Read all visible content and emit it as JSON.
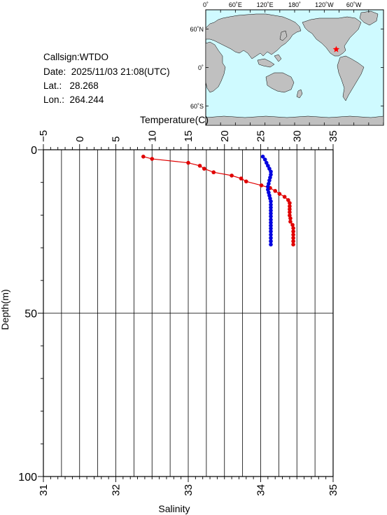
{
  "info": {
    "callsign": "Callsign:WTDO",
    "date": "Date:  2025/11/03 21:08(UTC)",
    "lat": "Lat.:   28.268",
    "lon": "Lon.:  264.244"
  },
  "map": {
    "top_ticks": [
      "0˚",
      "60˚E",
      "120˚E",
      "180˚",
      "120˚W",
      "60˚W"
    ],
    "lat_ticks": [
      "60˚N",
      "0˚",
      "60˚S"
    ],
    "ocean_color": "#cffaff",
    "land_color": "#c0c0c0",
    "marker_color": "#ff0000",
    "marker_lon": 264.244,
    "marker_lat": 28.268
  },
  "chart_data": {
    "type": "line",
    "y_label": "Depth(m)",
    "y_range": [
      0,
      100
    ],
    "y_ticks": [
      "0",
      "50",
      "100"
    ],
    "top_axis": {
      "label": "Temperature(C)",
      "range": [
        -5,
        35
      ],
      "ticks": [
        "−5",
        "0",
        "5",
        "10",
        "15",
        "20",
        "25",
        "30",
        "35"
      ]
    },
    "bottom_axis": {
      "label": "Salinity",
      "range": [
        31,
        35
      ],
      "ticks": [
        "31",
        "32",
        "33",
        "34",
        "35"
      ]
    },
    "grid": true,
    "series": [
      {
        "axis": "top",
        "color": "#e00000",
        "points": [
          [
            8.8,
            2.1
          ],
          [
            10.0,
            2.8
          ],
          [
            15.0,
            4.0
          ],
          [
            16.6,
            4.9
          ],
          [
            17.2,
            5.8
          ],
          [
            18.5,
            6.9
          ],
          [
            21.0,
            7.9
          ],
          [
            22.3,
            8.8
          ],
          [
            23.0,
            9.7
          ],
          [
            25.1,
            10.9
          ],
          [
            26.3,
            11.7
          ],
          [
            27.0,
            12.6
          ],
          [
            27.6,
            13.5
          ],
          [
            28.3,
            14.4
          ],
          [
            28.8,
            15.4
          ],
          [
            29.0,
            16.3
          ],
          [
            29.0,
            17.3
          ],
          [
            29.0,
            18.2
          ],
          [
            29.0,
            19.1
          ],
          [
            29.0,
            20.1
          ],
          [
            29.1,
            21.0
          ],
          [
            29.1,
            22.0
          ],
          [
            29.4,
            23.0
          ],
          [
            29.5,
            24.0
          ],
          [
            29.5,
            25.0
          ],
          [
            29.5,
            26.0
          ],
          [
            29.5,
            27.0
          ],
          [
            29.5,
            28.0
          ],
          [
            29.5,
            29.0
          ]
        ]
      },
      {
        "axis": "bottom",
        "color": "#0000e0",
        "points": [
          [
            34.03,
            2.1
          ],
          [
            34.06,
            3.0
          ],
          [
            34.08,
            4.0
          ],
          [
            34.1,
            4.9
          ],
          [
            34.12,
            5.8
          ],
          [
            34.14,
            6.7
          ],
          [
            34.14,
            7.6
          ],
          [
            34.13,
            8.5
          ],
          [
            34.12,
            9.4
          ],
          [
            34.11,
            10.4
          ],
          [
            34.1,
            11.3
          ],
          [
            34.1,
            12.2
          ],
          [
            34.11,
            13.1
          ],
          [
            34.12,
            14.0
          ],
          [
            34.13,
            14.9
          ],
          [
            34.14,
            15.8
          ],
          [
            34.14,
            16.8
          ],
          [
            34.14,
            17.7
          ],
          [
            34.14,
            18.6
          ],
          [
            34.14,
            19.5
          ],
          [
            34.14,
            20.4
          ],
          [
            34.14,
            21.4
          ],
          [
            34.14,
            22.3
          ],
          [
            34.14,
            23.2
          ],
          [
            34.14,
            24.1
          ],
          [
            34.14,
            25.0
          ],
          [
            34.14,
            26.0
          ],
          [
            34.14,
            27.0
          ],
          [
            34.14,
            28.0
          ],
          [
            34.14,
            29.0
          ]
        ]
      }
    ]
  }
}
